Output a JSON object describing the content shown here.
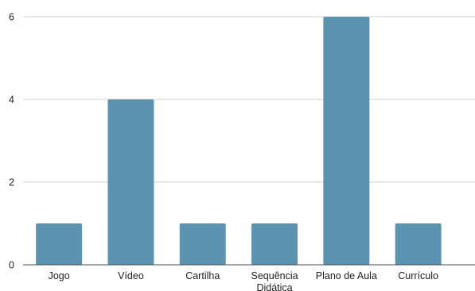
{
  "chart_data": {
    "type": "bar",
    "categories": [
      [
        "Jogo"
      ],
      [
        "Vídeo"
      ],
      [
        "Cartilha"
      ],
      [
        "Sequência",
        "Didática"
      ],
      [
        "Plano de Aula"
      ],
      [
        "Currículo"
      ]
    ],
    "values": [
      1,
      4,
      1,
      1,
      6,
      1
    ],
    "ylim": [
      0,
      6
    ],
    "yticks": [
      0,
      2,
      4,
      6
    ],
    "grid": true,
    "bar_color": "#5b93b0"
  }
}
